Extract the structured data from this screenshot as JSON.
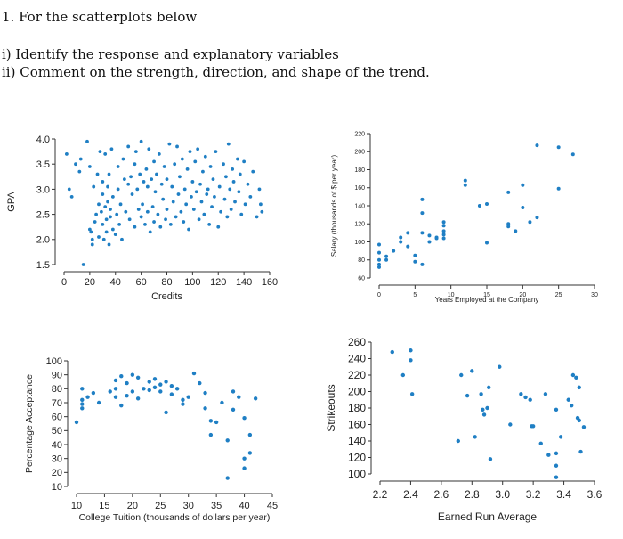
{
  "question": {
    "title": "1.  For the scatterplots below",
    "part_i": "i) Identify the response and explanatory variables",
    "part_ii": "ii) Comment on the strength, direction, and shape of the trend."
  },
  "colors": {
    "point": "#1f7fc4",
    "axis": "#333333"
  },
  "chart_data": [
    {
      "type": "scatter",
      "xlabel": "Credits",
      "ylabel": "GPA",
      "xlim": [
        0,
        160
      ],
      "ylim": [
        1.5,
        4.0
      ],
      "xticks": [
        0,
        20,
        40,
        60,
        80,
        100,
        120,
        140,
        160
      ],
      "yticks": [
        1.5,
        2.0,
        2.5,
        3.0,
        3.5,
        4.0
      ],
      "ytick_labels": [
        "1.5",
        "2.0",
        "2.5",
        "3.0",
        "3.5",
        "4.0"
      ],
      "points": [
        [
          2,
          3.7
        ],
        [
          4,
          3.0
        ],
        [
          6,
          2.85
        ],
        [
          9,
          3.5
        ],
        [
          12,
          3.35
        ],
        [
          13,
          3.6
        ],
        [
          15,
          1.5
        ],
        [
          18,
          3.95
        ],
        [
          20,
          3.45
        ],
        [
          20,
          2.2
        ],
        [
          21,
          2.15
        ],
        [
          22,
          2.0
        ],
        [
          22,
          1.9
        ],
        [
          23,
          3.05
        ],
        [
          24,
          2.35
        ],
        [
          25,
          2.5
        ],
        [
          26,
          3.3
        ],
        [
          27,
          2.05
        ],
        [
          27,
          2.7
        ],
        [
          28,
          3.75
        ],
        [
          29,
          2.55
        ],
        [
          30,
          2.3
        ],
        [
          30,
          2.9
        ],
        [
          30,
          3.15
        ],
        [
          31,
          2.0
        ],
        [
          32,
          2.65
        ],
        [
          32,
          3.7
        ],
        [
          33,
          2.15
        ],
        [
          33,
          2.4
        ],
        [
          34,
          2.75
        ],
        [
          34,
          3.05
        ],
        [
          35,
          1.9
        ],
        [
          35,
          3.3
        ],
        [
          36,
          2.45
        ],
        [
          36,
          2.6
        ],
        [
          37,
          3.8
        ],
        [
          38,
          2.2
        ],
        [
          38,
          2.85
        ],
        [
          40,
          2.1
        ],
        [
          41,
          2.5
        ],
        [
          42,
          3.0
        ],
        [
          42,
          3.45
        ],
        [
          43,
          2.3
        ],
        [
          44,
          2.7
        ],
        [
          45,
          2.0
        ],
        [
          46,
          3.6
        ],
        [
          47,
          3.2
        ],
        [
          48,
          2.55
        ],
        [
          50,
          3.1
        ],
        [
          50,
          3.85
        ],
        [
          51,
          2.4
        ],
        [
          52,
          3.25
        ],
        [
          53,
          2.9
        ],
        [
          55,
          3.5
        ],
        [
          55,
          2.25
        ],
        [
          56,
          3.75
        ],
        [
          57,
          3.0
        ],
        [
          58,
          2.6
        ],
        [
          59,
          3.3
        ],
        [
          60,
          2.45
        ],
        [
          60,
          3.95
        ],
        [
          61,
          2.7
        ],
        [
          62,
          3.15
        ],
        [
          63,
          2.3
        ],
        [
          64,
          3.4
        ],
        [
          65,
          3.05
        ],
        [
          65,
          2.55
        ],
        [
          66,
          3.8
        ],
        [
          67,
          2.15
        ],
        [
          68,
          3.2
        ],
        [
          69,
          2.65
        ],
        [
          70,
          3.55
        ],
        [
          70,
          2.35
        ],
        [
          71,
          2.95
        ],
        [
          72,
          3.3
        ],
        [
          73,
          2.5
        ],
        [
          74,
          3.7
        ],
        [
          75,
          2.25
        ],
        [
          76,
          3.1
        ],
        [
          77,
          2.8
        ],
        [
          78,
          3.45
        ],
        [
          79,
          2.4
        ],
        [
          80,
          3.2
        ],
        [
          80,
          2.6
        ],
        [
          82,
          3.9
        ],
        [
          83,
          2.3
        ],
        [
          84,
          3.05
        ],
        [
          85,
          2.75
        ],
        [
          86,
          3.5
        ],
        [
          87,
          2.45
        ],
        [
          88,
          3.85
        ],
        [
          89,
          2.9
        ],
        [
          90,
          3.25
        ],
        [
          91,
          2.55
        ],
        [
          92,
          3.6
        ],
        [
          93,
          2.35
        ],
        [
          94,
          3.0
        ],
        [
          95,
          2.7
        ],
        [
          96,
          3.4
        ],
        [
          97,
          2.2
        ],
        [
          98,
          3.75
        ],
        [
          99,
          2.85
        ],
        [
          100,
          3.15
        ],
        [
          101,
          2.6
        ],
        [
          102,
          3.55
        ],
        [
          103,
          2.95
        ],
        [
          104,
          3.8
        ],
        [
          105,
          2.4
        ],
        [
          106,
          3.1
        ],
        [
          107,
          2.75
        ],
        [
          108,
          3.35
        ],
        [
          109,
          2.5
        ],
        [
          110,
          3.65
        ],
        [
          111,
          2.9
        ],
        [
          112,
          3.0
        ],
        [
          113,
          2.3
        ],
        [
          114,
          3.45
        ],
        [
          115,
          2.65
        ],
        [
          116,
          3.2
        ],
        [
          117,
          2.85
        ],
        [
          118,
          3.75
        ],
        [
          120,
          2.25
        ],
        [
          121,
          3.05
        ],
        [
          122,
          2.55
        ],
        [
          124,
          3.5
        ],
        [
          125,
          2.8
        ],
        [
          126,
          3.25
        ],
        [
          127,
          2.45
        ],
        [
          128,
          3.9
        ],
        [
          129,
          3.0
        ],
        [
          130,
          2.6
        ],
        [
          131,
          3.4
        ],
        [
          132,
          3.15
        ],
        [
          133,
          2.75
        ],
        [
          135,
          3.6
        ],
        [
          136,
          2.95
        ],
        [
          137,
          3.3
        ],
        [
          138,
          2.5
        ],
        [
          140,
          3.55
        ],
        [
          141,
          2.7
        ],
        [
          143,
          3.1
        ],
        [
          145,
          2.85
        ],
        [
          147,
          3.35
        ],
        [
          150,
          2.45
        ],
        [
          152,
          3.0
        ],
        [
          153,
          2.7
        ],
        [
          154,
          2.55
        ]
      ]
    },
    {
      "type": "scatter",
      "xlabel": "Years Employed at the Company",
      "ylabel": "Salary (thousands of $ per year)",
      "xlim": [
        0,
        30
      ],
      "ylim": [
        60,
        220
      ],
      "xticks": [
        0,
        5,
        10,
        15,
        20,
        25,
        30
      ],
      "yticks": [
        60,
        80,
        100,
        120,
        140,
        160,
        180,
        200,
        220
      ],
      "points": [
        [
          0,
          97
        ],
        [
          0,
          88
        ],
        [
          0,
          80
        ],
        [
          0,
          75
        ],
        [
          0,
          72
        ],
        [
          1,
          84
        ],
        [
          1,
          80
        ],
        [
          2,
          90
        ],
        [
          3,
          105
        ],
        [
          3,
          100
        ],
        [
          4,
          110
        ],
        [
          4,
          95
        ],
        [
          5,
          78
        ],
        [
          5,
          85
        ],
        [
          6,
          110
        ],
        [
          6,
          147
        ],
        [
          6,
          132
        ],
        [
          6,
          75
        ],
        [
          7,
          100
        ],
        [
          7,
          107
        ],
        [
          8,
          105
        ],
        [
          8,
          104
        ],
        [
          9,
          108
        ],
        [
          9,
          112
        ],
        [
          9,
          118
        ],
        [
          9,
          122
        ],
        [
          9,
          104
        ],
        [
          12,
          168
        ],
        [
          12,
          163
        ],
        [
          14,
          140
        ],
        [
          15,
          142
        ],
        [
          15,
          99
        ],
        [
          18,
          155
        ],
        [
          18,
          120
        ],
        [
          18,
          117
        ],
        [
          19,
          112
        ],
        [
          20,
          163
        ],
        [
          20,
          138
        ],
        [
          21,
          122
        ],
        [
          22,
          207
        ],
        [
          22,
          127
        ],
        [
          25,
          205
        ],
        [
          25,
          159
        ],
        [
          27,
          197
        ]
      ]
    },
    {
      "type": "scatter",
      "xlabel": "College Tuition (thousands of dollars per year)",
      "ylabel": "Percentage Acceptance",
      "xlim": [
        10,
        45
      ],
      "ylim": [
        10,
        100
      ],
      "xticks": [
        10,
        15,
        20,
        25,
        30,
        35,
        40,
        45
      ],
      "yticks": [
        10,
        20,
        30,
        40,
        50,
        60,
        70,
        80,
        90,
        100
      ],
      "points": [
        [
          10,
          56
        ],
        [
          11,
          80
        ],
        [
          11,
          72
        ],
        [
          11,
          69
        ],
        [
          11,
          66
        ],
        [
          12,
          74
        ],
        [
          13,
          77
        ],
        [
          14,
          70
        ],
        [
          16,
          78
        ],
        [
          17,
          86
        ],
        [
          17,
          80
        ],
        [
          17,
          74
        ],
        [
          18,
          89
        ],
        [
          18,
          68
        ],
        [
          19,
          84
        ],
        [
          19,
          75
        ],
        [
          20,
          90
        ],
        [
          20,
          78
        ],
        [
          21,
          88
        ],
        [
          21,
          73
        ],
        [
          22,
          80
        ],
        [
          23,
          85
        ],
        [
          23,
          79
        ],
        [
          24,
          87
        ],
        [
          24,
          81
        ],
        [
          25,
          83
        ],
        [
          25,
          78
        ],
        [
          26,
          85
        ],
        [
          26,
          63
        ],
        [
          27,
          82
        ],
        [
          27,
          76
        ],
        [
          28,
          80
        ],
        [
          29,
          72
        ],
        [
          29,
          69
        ],
        [
          30,
          74
        ],
        [
          31,
          91
        ],
        [
          32,
          84
        ],
        [
          33,
          77
        ],
        [
          33,
          66
        ],
        [
          34,
          57
        ],
        [
          34,
          47
        ],
        [
          35,
          56
        ],
        [
          36,
          70
        ],
        [
          37,
          43
        ],
        [
          37,
          16
        ],
        [
          38,
          78
        ],
        [
          38,
          65
        ],
        [
          39,
          74
        ],
        [
          40,
          59
        ],
        [
          40,
          30
        ],
        [
          40,
          23
        ],
        [
          41,
          47
        ],
        [
          41,
          34
        ],
        [
          42,
          73
        ]
      ]
    },
    {
      "type": "scatter",
      "xlabel": "Earned Run Average",
      "ylabel": "Strikeouts",
      "xlim": [
        2.2,
        3.6
      ],
      "ylim": [
        100,
        260
      ],
      "xticks": [
        2.2,
        2.4,
        2.6,
        2.8,
        3.0,
        3.2,
        3.4,
        3.6
      ],
      "xtick_labels": [
        "2.2",
        "2.4",
        "2.6",
        "2.8",
        "3.0",
        "3.2",
        "3.4",
        "3.6"
      ],
      "yticks": [
        100,
        120,
        140,
        160,
        180,
        200,
        220,
        240,
        260
      ],
      "points": [
        [
          2.28,
          248
        ],
        [
          2.35,
          220
        ],
        [
          2.4,
          250
        ],
        [
          2.4,
          238
        ],
        [
          2.41,
          197
        ],
        [
          2.71,
          140
        ],
        [
          2.73,
          220
        ],
        [
          2.77,
          195
        ],
        [
          2.8,
          225
        ],
        [
          2.82,
          145
        ],
        [
          2.86,
          197
        ],
        [
          2.87,
          178
        ],
        [
          2.88,
          172
        ],
        [
          2.9,
          180
        ],
        [
          2.91,
          205
        ],
        [
          2.92,
          118
        ],
        [
          2.98,
          230
        ],
        [
          3.05,
          160
        ],
        [
          3.12,
          197
        ],
        [
          3.15,
          193
        ],
        [
          3.18,
          190
        ],
        [
          3.19,
          158
        ],
        [
          3.2,
          158
        ],
        [
          3.25,
          137
        ],
        [
          3.28,
          197
        ],
        [
          3.3,
          123
        ],
        [
          3.35,
          178
        ],
        [
          3.35,
          125
        ],
        [
          3.35,
          110
        ],
        [
          3.35,
          96
        ],
        [
          3.38,
          145
        ],
        [
          3.43,
          190
        ],
        [
          3.45,
          183
        ],
        [
          3.46,
          220
        ],
        [
          3.48,
          217
        ],
        [
          3.49,
          168
        ],
        [
          3.5,
          205
        ],
        [
          3.5,
          165
        ],
        [
          3.51,
          127
        ],
        [
          3.53,
          157
        ]
      ]
    }
  ]
}
